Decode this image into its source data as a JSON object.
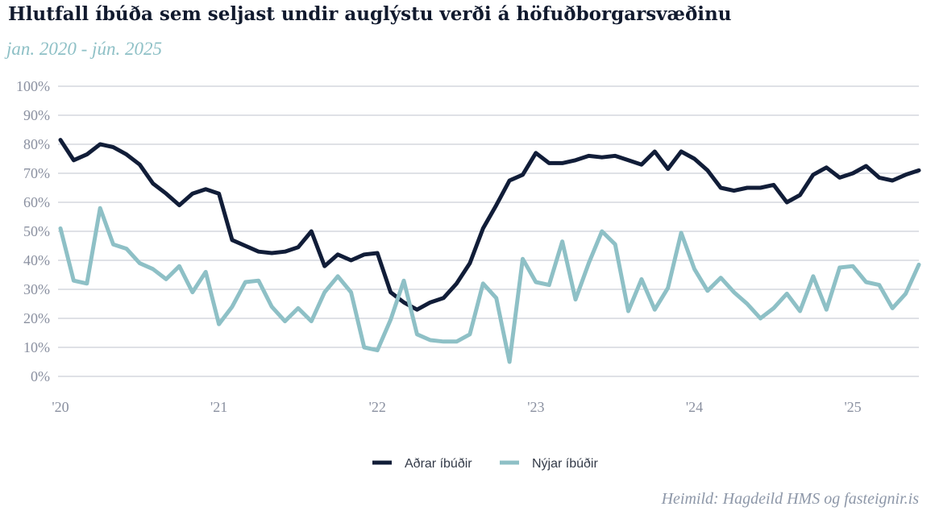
{
  "chart_data": {
    "type": "line",
    "title": "Hlutfall íbúða sem seljast undir auglýstu verði á höfuðborgarsvæðinu",
    "subtitle": "jan. 2020 - jún. 2025",
    "source": "Heimild: Hagdeild HMS og fasteignir.is",
    "ylim": [
      0,
      100
    ],
    "y_ticks": [
      "0%",
      "10%",
      "20%",
      "30%",
      "40%",
      "50%",
      "60%",
      "70%",
      "80%",
      "90%",
      "100%"
    ],
    "x_ticks": [
      "'20",
      "'21",
      "'22",
      "'23",
      "'24",
      "'25"
    ],
    "x_start": "2020-01",
    "x_end": "2025-06",
    "grid": true,
    "legend_position": "bottom",
    "series": [
      {
        "name": "Aðrar íbúðir",
        "color": "#111d38",
        "values": [
          81.5,
          74.5,
          76.5,
          80,
          79,
          76.5,
          73,
          66.5,
          63,
          59,
          63,
          64.5,
          63,
          47,
          45,
          43,
          42.5,
          43,
          44.5,
          50,
          38,
          42,
          40,
          42,
          42.5,
          29,
          25.5,
          23,
          25.5,
          27,
          32,
          39,
          51,
          59,
          67.5,
          69.5,
          77,
          73.5,
          73.5,
          74.5,
          76,
          75.5,
          76,
          74.5,
          73,
          77.5,
          71.5,
          77.5,
          75,
          71,
          65,
          64,
          65,
          65,
          66,
          60,
          62.5,
          69.5,
          72,
          68.5,
          70,
          72.5,
          68.5,
          67.5,
          69.5,
          71
        ]
      },
      {
        "name": "Nýjar íbúðir",
        "color": "#8ec0c6",
        "values": [
          51,
          33,
          32,
          58,
          45.5,
          44,
          39,
          37,
          33.5,
          38,
          29,
          36,
          18,
          24,
          32.5,
          33,
          24,
          19,
          23.5,
          19,
          29,
          34.5,
          29,
          10,
          9,
          19.5,
          33,
          14.5,
          12.5,
          12,
          12,
          14.5,
          32,
          27,
          5,
          40.5,
          32.5,
          31.5,
          46.5,
          26.5,
          39,
          50,
          45.5,
          22.5,
          33.5,
          23,
          30.5,
          49.5,
          37,
          29.5,
          34,
          29,
          25,
          20,
          23.5,
          28.5,
          22.5,
          34.5,
          23,
          37.5,
          38,
          32.5,
          31.5,
          23.5,
          28.5,
          38.5
        ]
      }
    ]
  }
}
